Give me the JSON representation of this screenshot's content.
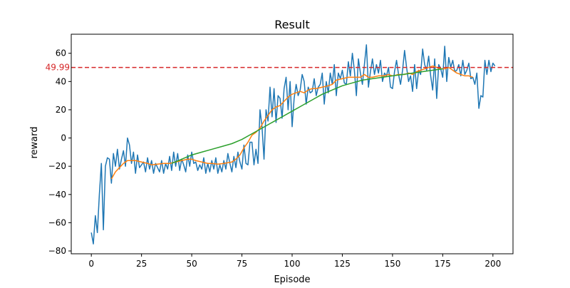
{
  "chart_data": {
    "type": "line",
    "title": "Result",
    "xlabel": "Episode",
    "ylabel": "reward",
    "xlim": [
      -10,
      210
    ],
    "ylim": [
      -82,
      73.5
    ],
    "xticks": [
      0,
      25,
      50,
      75,
      100,
      125,
      150,
      175,
      200
    ],
    "yticks": [
      -80,
      -60,
      -40,
      -20,
      0,
      20,
      40,
      60
    ],
    "grid": false,
    "legend": "none",
    "colors": {
      "raw": "#1f77b4",
      "moving_avg": "#ff7f0e",
      "trend": "#2ca02c",
      "target": "#d62728"
    },
    "reference_line": {
      "y": 49.99,
      "label": "49.99",
      "style": "dashed"
    },
    "series": [
      {
        "values": [
          [
            0,
            -67
          ],
          [
            1,
            -75
          ],
          [
            2,
            -55
          ],
          [
            3,
            -67
          ],
          [
            4,
            -40
          ],
          [
            5,
            -18
          ],
          [
            6,
            -65
          ],
          [
            7,
            -20
          ],
          [
            8,
            -14
          ],
          [
            9,
            -15
          ],
          [
            10,
            -32
          ],
          [
            11,
            -11
          ],
          [
            12,
            -20
          ],
          [
            13,
            -8
          ],
          [
            14,
            -22
          ],
          [
            15,
            -15
          ],
          [
            16,
            -9
          ],
          [
            17,
            -20
          ],
          [
            18,
            0
          ],
          [
            19,
            -5
          ],
          [
            20,
            -18
          ],
          [
            21,
            -10
          ],
          [
            22,
            -25
          ],
          [
            23,
            -12
          ],
          [
            24,
            -21
          ],
          [
            25,
            -19
          ],
          [
            26,
            -17
          ],
          [
            27,
            -24
          ],
          [
            28,
            -14
          ],
          [
            29,
            -22
          ],
          [
            30,
            -16
          ],
          [
            31,
            -25
          ],
          [
            32,
            -18
          ],
          [
            33,
            -21
          ],
          [
            34,
            -24
          ],
          [
            35,
            -16
          ],
          [
            36,
            -25
          ],
          [
            37,
            -18
          ],
          [
            38,
            -22
          ],
          [
            39,
            -13
          ],
          [
            40,
            -23
          ],
          [
            41,
            -10
          ],
          [
            42,
            -20
          ],
          [
            43,
            -11
          ],
          [
            44,
            -23
          ],
          [
            45,
            -15
          ],
          [
            46,
            -19
          ],
          [
            47,
            -24
          ],
          [
            48,
            -12
          ],
          [
            49,
            -20
          ],
          [
            50,
            -10
          ],
          [
            51,
            -18
          ],
          [
            52,
            -17
          ],
          [
            53,
            -23
          ],
          [
            54,
            -19
          ],
          [
            55,
            -22
          ],
          [
            56,
            -14
          ],
          [
            57,
            -25
          ],
          [
            58,
            -18
          ],
          [
            59,
            -24
          ],
          [
            60,
            -16
          ],
          [
            61,
            -22
          ],
          [
            62,
            -14
          ],
          [
            63,
            -25
          ],
          [
            64,
            -19
          ],
          [
            65,
            -24
          ],
          [
            66,
            -16
          ],
          [
            67,
            -22
          ],
          [
            68,
            -11
          ],
          [
            69,
            -18
          ],
          [
            70,
            -24
          ],
          [
            71,
            -13
          ],
          [
            72,
            -21
          ],
          [
            73,
            -10
          ],
          [
            74,
            -17
          ],
          [
            75,
            -22
          ],
          [
            76,
            -5
          ],
          [
            77,
            -18
          ],
          [
            78,
            -19
          ],
          [
            79,
            -3
          ],
          [
            80,
            -3
          ],
          [
            81,
            -19
          ],
          [
            82,
            -8
          ],
          [
            83,
            -18
          ],
          [
            84,
            20
          ],
          [
            85,
            8
          ],
          [
            86,
            -15
          ],
          [
            87,
            20
          ],
          [
            88,
            12
          ],
          [
            89,
            36
          ],
          [
            90,
            15
          ],
          [
            91,
            35
          ],
          [
            92,
            11
          ],
          [
            93,
            30
          ],
          [
            94,
            28
          ],
          [
            95,
            14
          ],
          [
            96,
            35
          ],
          [
            97,
            43
          ],
          [
            98,
            20
          ],
          [
            99,
            40
          ],
          [
            100,
            8
          ],
          [
            101,
            28
          ],
          [
            102,
            38
          ],
          [
            103,
            30
          ],
          [
            104,
            34
          ],
          [
            105,
            45
          ],
          [
            106,
            40
          ],
          [
            107,
            24
          ],
          [
            108,
            36
          ],
          [
            109,
            32
          ],
          [
            110,
            33
          ],
          [
            111,
            42
          ],
          [
            112,
            30
          ],
          [
            113,
            36
          ],
          [
            114,
            38
          ],
          [
            115,
            46
          ],
          [
            116,
            24
          ],
          [
            117,
            40
          ],
          [
            118,
            32
          ],
          [
            119,
            46
          ],
          [
            120,
            38
          ],
          [
            121,
            52
          ],
          [
            122,
            30
          ],
          [
            123,
            46
          ],
          [
            124,
            42
          ],
          [
            125,
            48
          ],
          [
            126,
            39
          ],
          [
            127,
            38
          ],
          [
            128,
            54
          ],
          [
            129,
            44
          ],
          [
            130,
            60
          ],
          [
            131,
            48
          ],
          [
            132,
            30
          ],
          [
            133,
            56
          ],
          [
            134,
            46
          ],
          [
            135,
            38
          ],
          [
            136,
            52
          ],
          [
            137,
            66
          ],
          [
            138,
            36
          ],
          [
            139,
            47
          ],
          [
            140,
            56
          ],
          [
            141,
            45
          ],
          [
            142,
            52
          ],
          [
            143,
            46
          ],
          [
            144,
            55
          ],
          [
            145,
            40
          ],
          [
            146,
            46
          ],
          [
            147,
            44
          ],
          [
            148,
            50
          ],
          [
            149,
            36
          ],
          [
            150,
            35
          ],
          [
            151,
            47
          ],
          [
            152,
            55
          ],
          [
            153,
            45
          ],
          [
            154,
            38
          ],
          [
            155,
            48
          ],
          [
            156,
            62
          ],
          [
            157,
            50
          ],
          [
            158,
            40
          ],
          [
            159,
            44
          ],
          [
            160,
            33
          ],
          [
            161,
            52
          ],
          [
            162,
            35
          ],
          [
            163,
            48
          ],
          [
            164,
            45
          ],
          [
            165,
            63
          ],
          [
            166,
            52
          ],
          [
            167,
            48
          ],
          [
            168,
            58
          ],
          [
            169,
            44
          ],
          [
            170,
            34
          ],
          [
            171,
            56
          ],
          [
            172,
            28
          ],
          [
            173,
            52
          ],
          [
            174,
            49
          ],
          [
            175,
            43
          ],
          [
            176,
            65
          ],
          [
            177,
            40
          ],
          [
            178,
            57
          ],
          [
            179,
            50
          ],
          [
            180,
            55
          ],
          [
            181,
            47
          ],
          [
            182,
            48
          ],
          [
            183,
            52
          ],
          [
            184,
            44
          ],
          [
            185,
            55
          ],
          [
            186,
            45
          ],
          [
            187,
            48
          ],
          [
            188,
            53
          ],
          [
            189,
            42
          ],
          [
            190,
            43
          ],
          [
            191,
            38
          ],
          [
            192,
            46
          ],
          [
            193,
            21
          ],
          [
            194,
            30
          ],
          [
            195,
            29
          ],
          [
            196,
            55
          ],
          [
            197,
            45
          ],
          [
            198,
            55
          ],
          [
            199,
            47
          ],
          [
            200,
            53
          ],
          [
            201,
            51
          ]
        ]
      },
      {
        "values": [
          [
            10,
            -29
          ],
          [
            12,
            -24
          ],
          [
            14,
            -21
          ],
          [
            16,
            -18
          ],
          [
            18,
            -16
          ],
          [
            20,
            -16
          ],
          [
            22,
            -16
          ],
          [
            25,
            -17
          ],
          [
            28,
            -18
          ],
          [
            30,
            -19
          ],
          [
            33,
            -18.5
          ],
          [
            36,
            -18
          ],
          [
            39,
            -18
          ],
          [
            42,
            -17
          ],
          [
            45,
            -16
          ],
          [
            48,
            -15
          ],
          [
            50,
            -15
          ],
          [
            52,
            -16
          ],
          [
            55,
            -17
          ],
          [
            58,
            -18
          ],
          [
            60,
            -18
          ],
          [
            63,
            -18.5
          ],
          [
            66,
            -18
          ],
          [
            68,
            -17.5
          ],
          [
            70,
            -17
          ],
          [
            72,
            -15
          ],
          [
            74,
            -12
          ],
          [
            76,
            -7
          ],
          [
            78,
            -3
          ],
          [
            80,
            2
          ],
          [
            82,
            4
          ],
          [
            84,
            7
          ],
          [
            86,
            12
          ],
          [
            88,
            16
          ],
          [
            90,
            20
          ],
          [
            92,
            22
          ],
          [
            94,
            23
          ],
          [
            96,
            26
          ],
          [
            98,
            29
          ],
          [
            100,
            31
          ],
          [
            102,
            32
          ],
          [
            104,
            33
          ],
          [
            106,
            32
          ],
          [
            108,
            34
          ],
          [
            110,
            35
          ],
          [
            112,
            35
          ],
          [
            115,
            36
          ],
          [
            118,
            37
          ],
          [
            120,
            38
          ],
          [
            122,
            41
          ],
          [
            125,
            42
          ],
          [
            128,
            43
          ],
          [
            131,
            43
          ],
          [
            134,
            43
          ],
          [
            136,
            45
          ],
          [
            138,
            43
          ],
          [
            140,
            43
          ],
          [
            143,
            44
          ],
          [
            146,
            44
          ],
          [
            148,
            45
          ],
          [
            150,
            44
          ],
          [
            153,
            45
          ],
          [
            156,
            45
          ],
          [
            158,
            46
          ],
          [
            160,
            45
          ],
          [
            162,
            47
          ],
          [
            164,
            48
          ],
          [
            166,
            49
          ],
          [
            168,
            50
          ],
          [
            170,
            51
          ],
          [
            172,
            50
          ],
          [
            174,
            49
          ],
          [
            176,
            49
          ],
          [
            178,
            50
          ],
          [
            180,
            48
          ],
          [
            182,
            46
          ],
          [
            184,
            45
          ],
          [
            186,
            44
          ],
          [
            188,
            44
          ],
          [
            190,
            43
          ]
        ]
      },
      {
        "values": [
          [
            40,
            -18
          ],
          [
            45,
            -15
          ],
          [
            50,
            -12
          ],
          [
            55,
            -10
          ],
          [
            60,
            -8
          ],
          [
            65,
            -6
          ],
          [
            70,
            -4
          ],
          [
            75,
            -1
          ],
          [
            80,
            3
          ],
          [
            85,
            7
          ],
          [
            90,
            11
          ],
          [
            95,
            15
          ],
          [
            100,
            19
          ],
          [
            105,
            23
          ],
          [
            110,
            27
          ],
          [
            115,
            31
          ],
          [
            120,
            34
          ],
          [
            125,
            37
          ],
          [
            130,
            39
          ],
          [
            135,
            41
          ],
          [
            140,
            42
          ],
          [
            145,
            43
          ],
          [
            150,
            44
          ],
          [
            155,
            45
          ],
          [
            160,
            46
          ],
          [
            165,
            47
          ],
          [
            170,
            48
          ],
          [
            175,
            49
          ]
        ]
      }
    ]
  }
}
